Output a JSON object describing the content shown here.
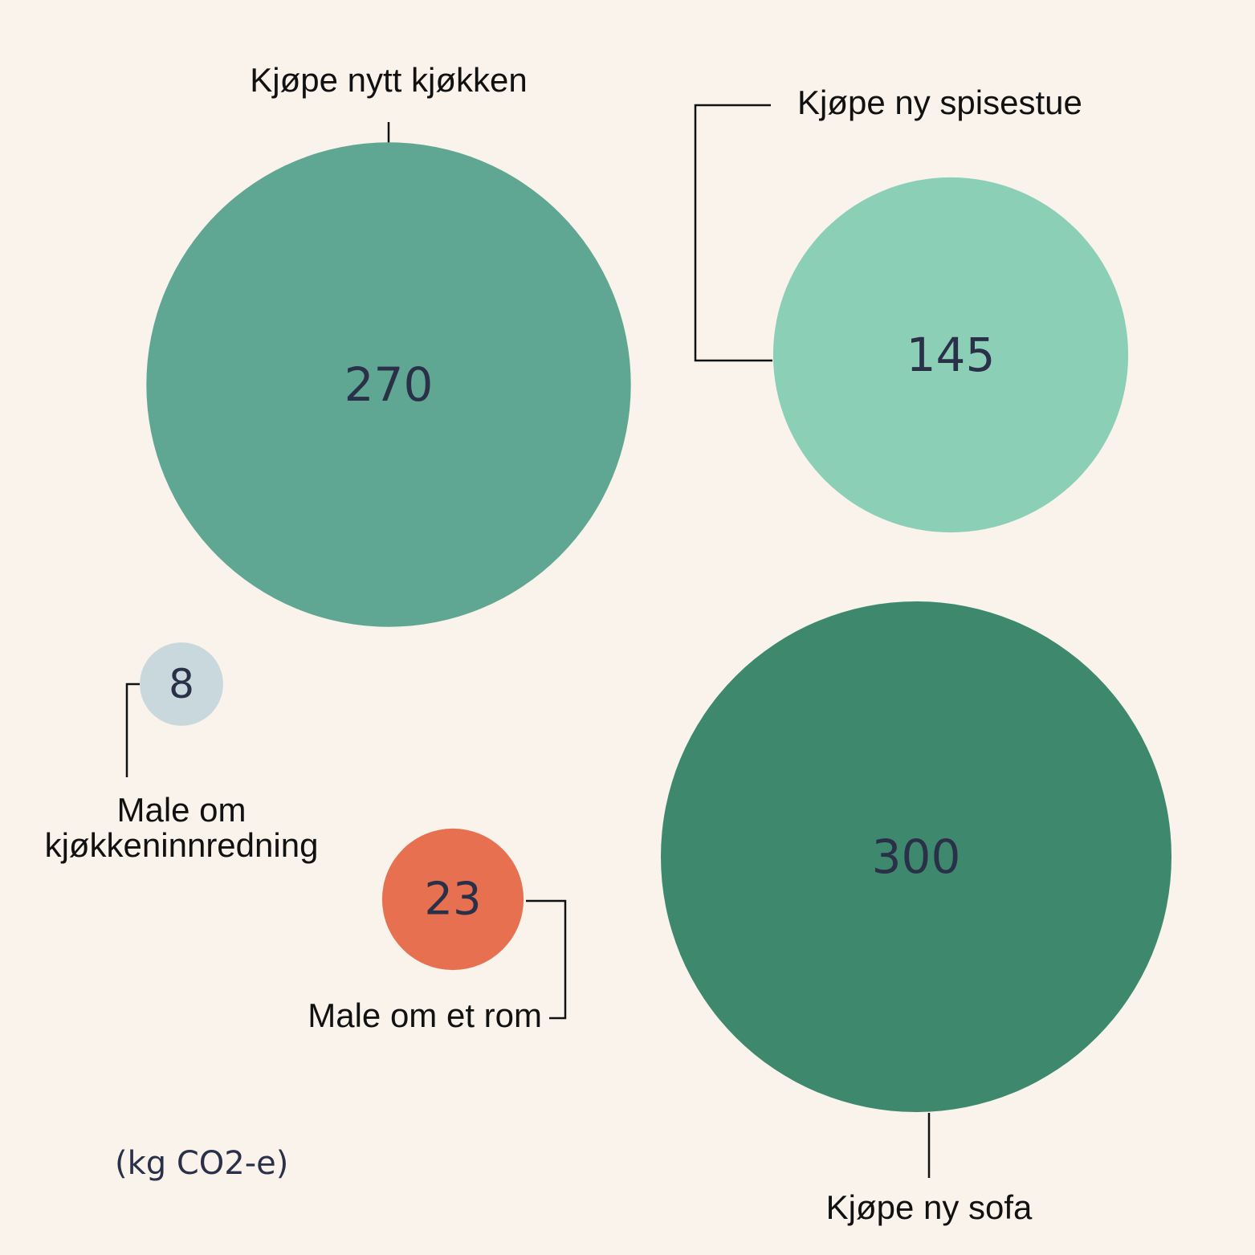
{
  "chart_data": {
    "type": "bubble",
    "unit": "(kg CO2-e)",
    "bubbles": [
      {
        "id": "kjokken",
        "label_lines": [
          "Kjøpe nytt kjøkken"
        ],
        "value": 270,
        "color": "#5fa792"
      },
      {
        "id": "spisestue",
        "label_lines": [
          "Kjøpe ny spisestue"
        ],
        "value": 145,
        "color": "#8ccfb7"
      },
      {
        "id": "male-kjokken",
        "label_lines": [
          "Male om",
          "kjøkkeninnredning"
        ],
        "value": 8,
        "color": "#c9d8dc"
      },
      {
        "id": "male-rom",
        "label_lines": [
          "Male om et rom"
        ],
        "value": 23,
        "color": "#e6704f"
      },
      {
        "id": "sofa",
        "label_lines": [
          "Kjøpe ny sofa"
        ],
        "value": 300,
        "color": "#3e896d"
      }
    ]
  }
}
